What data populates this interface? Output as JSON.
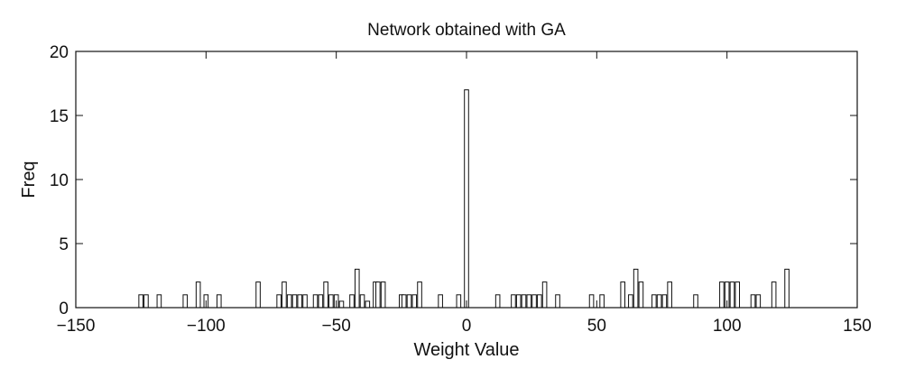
{
  "chart_data": {
    "type": "bar",
    "title": "Network obtained with GA",
    "xlabel": "Weight Value",
    "ylabel": "Freq",
    "xlim": [
      -150,
      150
    ],
    "ylim": [
      0,
      20
    ],
    "xticks": [
      -150,
      -100,
      -50,
      0,
      50,
      100,
      150
    ],
    "yticks": [
      0,
      5,
      10,
      15,
      20
    ],
    "xtick_labels": [
      "−150",
      "−100",
      "−50",
      "0",
      "50",
      "100",
      "150"
    ],
    "ytick_labels": [
      "0",
      "5",
      "10",
      "15",
      "20"
    ],
    "grid": false,
    "colors": {
      "bar_fill": "#ffffff",
      "bar_stroke": "#111111",
      "axis": "#111111"
    },
    "x": [
      -125,
      -123,
      -118,
      -108,
      -103,
      -100,
      -95,
      -80,
      -72,
      -70,
      -68,
      -66,
      -64,
      -62,
      -58,
      -56,
      -54,
      -52,
      -50,
      -48,
      -44,
      -42,
      -40,
      -38,
      -35,
      -34,
      -32,
      -25,
      -24,
      -22,
      -20,
      -18,
      -10,
      -3,
      0,
      12,
      18,
      20,
      22,
      24,
      26,
      28,
      30,
      35,
      48,
      52,
      60,
      63,
      65,
      67,
      72,
      74,
      76,
      78,
      88,
      98,
      100,
      102,
      104,
      110,
      112,
      118,
      123
    ],
    "values": [
      1,
      1,
      1,
      1,
      2,
      1,
      1,
      2,
      1,
      2,
      1,
      1,
      1,
      1,
      1,
      1,
      2,
      1,
      1,
      0.5,
      1,
      3,
      1,
      0.5,
      2,
      2,
      2,
      1,
      1,
      1,
      1,
      2,
      1,
      1,
      17,
      1,
      1,
      1,
      1,
      1,
      1,
      1,
      2,
      1,
      1,
      1,
      2,
      1,
      3,
      2,
      1,
      1,
      1,
      2,
      1,
      2,
      2,
      2,
      2,
      1,
      1,
      2,
      3
    ]
  }
}
